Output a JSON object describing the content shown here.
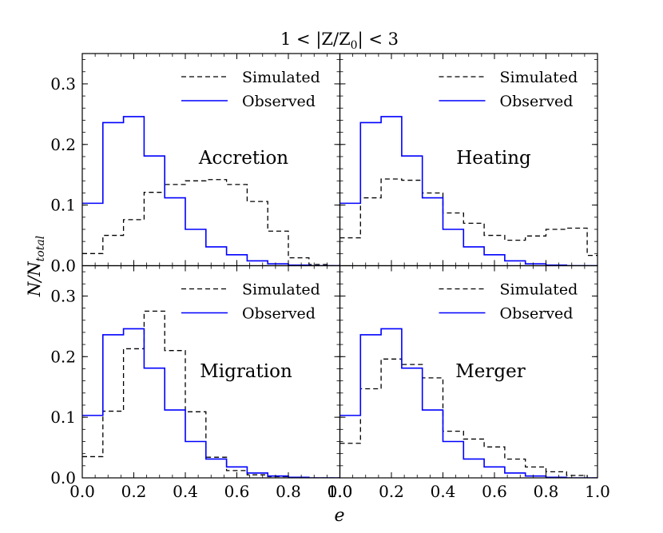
{
  "chart_data": {
    "type": "step-histogram-grid",
    "title": "1 < |Z/Z",
    "title_sub": "0",
    "title_tail": "| < 3",
    "xlabel": "e",
    "ylabel_main": "N/N",
    "ylabel_sub": "total",
    "xlim": [
      0.0,
      1.0
    ],
    "ylim": [
      0.0,
      0.35
    ],
    "bin_edges": [
      0.0,
      0.08,
      0.16,
      0.24,
      0.32,
      0.4,
      0.48,
      0.56,
      0.64,
      0.72,
      0.8,
      0.88,
      0.96,
      1.0
    ],
    "x_ticks": [
      "0.0",
      "0.2",
      "0.4",
      "0.6",
      "0.8",
      "1.0"
    ],
    "x_tick_values": [
      0.0,
      0.2,
      0.4,
      0.6,
      0.8,
      1.0
    ],
    "y_ticks": [
      "0.0",
      "0.1",
      "0.2",
      "0.3"
    ],
    "y_tick_values": [
      0.0,
      0.1,
      0.2,
      0.3
    ],
    "legend": {
      "simulated": "Simulated",
      "observed": "Observed"
    },
    "colors": {
      "observed": "#0000ff",
      "simulated": "#000000"
    },
    "observed": [
      0.103,
      0.236,
      0.246,
      0.181,
      0.112,
      0.06,
      0.031,
      0.018,
      0.008,
      0.003,
      0.001,
      0.0,
      0.0
    ],
    "panels": [
      {
        "name": "Accretion",
        "simulated": [
          0.02,
          0.05,
          0.076,
          0.121,
          0.134,
          0.14,
          0.142,
          0.134,
          0.106,
          0.057,
          0.013,
          0.002,
          0.0
        ]
      },
      {
        "name": "Heating",
        "simulated": [
          0.046,
          0.112,
          0.143,
          0.141,
          0.12,
          0.087,
          0.07,
          0.05,
          0.042,
          0.049,
          0.06,
          0.062,
          0.017
        ]
      },
      {
        "name": "Migration",
        "simulated": [
          0.035,
          0.11,
          0.213,
          0.275,
          0.21,
          0.109,
          0.034,
          0.012,
          0.005,
          0.002,
          0.0,
          0.0,
          0.0
        ]
      },
      {
        "name": "Merger",
        "simulated": [
          0.057,
          0.147,
          0.196,
          0.187,
          0.165,
          0.077,
          0.064,
          0.051,
          0.031,
          0.018,
          0.01,
          0.004,
          0.0
        ]
      }
    ]
  }
}
